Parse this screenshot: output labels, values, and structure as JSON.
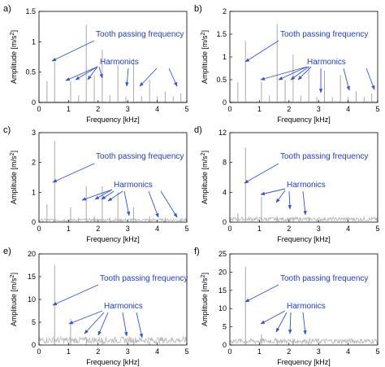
{
  "chart_data": [
    {
      "panel": "a)",
      "type": "bar",
      "xlabel": "Frequency [kHz]",
      "ylabel": "Amplitude [m/s2]",
      "xlim": [
        0,
        5
      ],
      "ylim": [
        0,
        1.5
      ],
      "xticks": [
        "0",
        "1",
        "2",
        "3",
        "4",
        "5"
      ],
      "yticks": [
        "0",
        "0.5",
        "1",
        "1.5"
      ],
      "x": [
        0.27,
        0.53,
        1.07,
        1.34,
        1.6,
        1.87,
        2.14,
        2.4,
        2.67,
        2.94,
        3.2,
        3.47,
        3.74,
        4.0,
        4.27,
        4.54,
        4.8
      ],
      "values": [
        0.35,
        0.67,
        0.35,
        0.12,
        1.28,
        0.45,
        0.87,
        0.12,
        0.62,
        0.1,
        0.72,
        0.1,
        0.38,
        0.1,
        0.18,
        0.1,
        0.15
      ],
      "noise_level": 0.01,
      "annotations": [
        "Tooth passing frequency",
        "Harmonics"
      ]
    },
    {
      "panel": "b)",
      "type": "bar",
      "xlabel": "Frequency [kHz]",
      "ylabel": "Amplitude [m/s2]",
      "xlim": [
        0,
        5
      ],
      "ylim": [
        0,
        2
      ],
      "xticks": [
        "0",
        "1",
        "2",
        "3",
        "4",
        "5"
      ],
      "yticks": [
        "0",
        "0.5",
        "1",
        "1.5",
        "2"
      ],
      "x": [
        0.27,
        0.53,
        1.07,
        1.34,
        1.6,
        1.87,
        2.14,
        2.4,
        2.67,
        2.94,
        3.2,
        3.47,
        3.74,
        4.0,
        4.27,
        4.54,
        4.8
      ],
      "values": [
        0.45,
        1.35,
        0.45,
        0.15,
        1.72,
        0.5,
        1.05,
        0.15,
        0.8,
        0.12,
        0.7,
        0.12,
        0.6,
        0.12,
        0.25,
        0.12,
        0.2
      ],
      "noise_level": 0.015,
      "annotations": [
        "Tooth passing frequency",
        "Harmonics"
      ]
    },
    {
      "panel": "c)",
      "type": "bar",
      "xlabel": "Frequency [kHz]",
      "ylabel": "Amplitude [m/s2]",
      "xlim": [
        0,
        5
      ],
      "ylim": [
        0,
        3
      ],
      "xticks": [
        "0",
        "1",
        "2",
        "3",
        "4",
        "5"
      ],
      "yticks": [
        "0",
        "1",
        "2",
        "3"
      ],
      "x": [
        0.27,
        0.53,
        1.07,
        1.34,
        1.6,
        1.87,
        2.14,
        2.4,
        2.67,
        3.2,
        3.74,
        4.27,
        4.8
      ],
      "values": [
        0.6,
        2.72,
        0.5,
        0.15,
        1.2,
        0.2,
        1.2,
        0.15,
        1.0,
        0.5,
        0.2,
        0.15,
        0.12
      ],
      "noise_level": 0.08,
      "annotations": [
        "Tooth passing frequency",
        "Harmonics"
      ]
    },
    {
      "panel": "d)",
      "type": "bar",
      "xlabel": "Frequency [kHz]",
      "ylabel": "Amplitude [m/s2]",
      "xlim": [
        0,
        5
      ],
      "ylim": [
        0,
        12
      ],
      "xticks": [
        "0",
        "1",
        "2",
        "3",
        "4",
        "5"
      ],
      "yticks": [
        "0",
        "4",
        "8",
        "12"
      ],
      "x": [
        0.27,
        0.53,
        1.07,
        1.6,
        2.14,
        2.67
      ],
      "values": [
        1.2,
        10.0,
        3.4,
        0.8,
        0.6,
        0.5
      ],
      "noise_level": 0.45,
      "annotations": [
        "Tooth passing frequency",
        "Harmonics"
      ]
    },
    {
      "panel": "e)",
      "type": "bar",
      "xlabel": "Frequency [kHz]",
      "ylabel": "Amplitude [m/s2]",
      "xlim": [
        0,
        5
      ],
      "ylim": [
        0,
        20
      ],
      "xticks": [
        "0",
        "1",
        "2",
        "3",
        "4",
        "5"
      ],
      "yticks": [
        "0",
        "5",
        "10",
        "15",
        "20"
      ],
      "x": [
        0.53,
        1.07,
        1.6,
        2.14,
        3.2,
        3.74
      ],
      "values": [
        17.6,
        5.8,
        1.5,
        1.3,
        1.0,
        0.8
      ],
      "noise_level": 1.2,
      "annotations": [
        "Tooth passing frequency",
        "Harmonics"
      ]
    },
    {
      "panel": "f)",
      "type": "bar",
      "xlabel": "Frequency [kHz]",
      "ylabel": "Amplitude [m/s2]",
      "xlim": [
        0,
        5
      ],
      "ylim": [
        0,
        25
      ],
      "xticks": [
        "0",
        "1",
        "2",
        "3",
        "4",
        "5"
      ],
      "yticks": [
        "0",
        "5",
        "10",
        "15",
        "20",
        "25"
      ],
      "x": [
        0.53,
        1.07,
        1.6,
        2.14,
        2.67
      ],
      "values": [
        21.5,
        3.0,
        1.5,
        1.3,
        1.1
      ],
      "noise_level": 1.2,
      "annotations": [
        "Tooth passing frequency",
        "Harmonics"
      ]
    }
  ],
  "colors": {
    "spikes": "#a9a9a9",
    "annotation_text": "#1f3cd6",
    "arrows": "#3050e0"
  }
}
